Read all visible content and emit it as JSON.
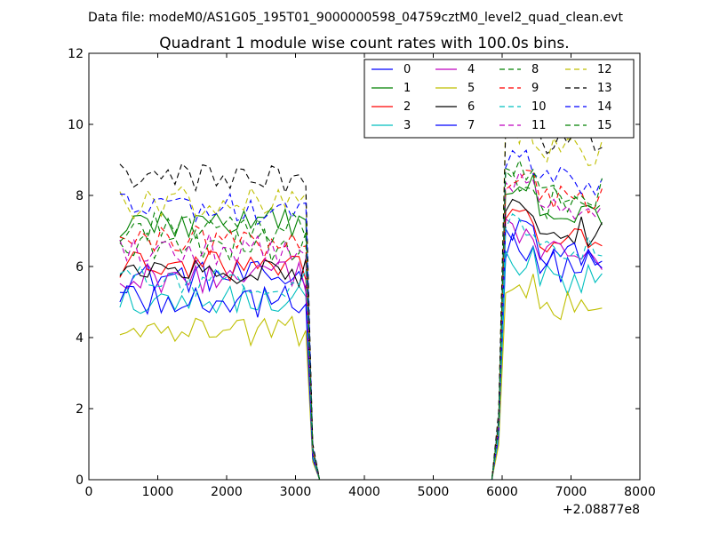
{
  "chart_data": {
    "type": "line",
    "suptitle": "Data file: modeM0/AS1G05_195T01_9000000598_04759cztM0_level2_quad_clean.evt",
    "title": "Quadrant 1 module wise count rates with 100.0s bins.",
    "xlabel": "",
    "ylabel": "",
    "x_offset_label": "+2.08877e8",
    "xlim": [
      0,
      8000
    ],
    "ylim": [
      0,
      12
    ],
    "xticks": [
      "0",
      "1000",
      "2000",
      "3000",
      "4000",
      "5000",
      "6000",
      "7000",
      "8000"
    ],
    "yticks": [
      "0",
      "2",
      "4",
      "6",
      "8",
      "10",
      "12"
    ],
    "x": [
      450,
      550,
      650,
      750,
      850,
      950,
      1050,
      1150,
      1250,
      1350,
      1450,
      1550,
      1650,
      1750,
      1850,
      1950,
      2050,
      2150,
      2250,
      2350,
      2450,
      2550,
      2650,
      2750,
      2850,
      2950,
      3050,
      3150,
      3250,
      3350,
      3450,
      5850,
      5950,
      6050,
      6150,
      6250,
      6350,
      6450,
      6550,
      6650,
      6750,
      6850,
      6950,
      7050,
      7150,
      7250,
      7350,
      7450
    ],
    "legend_location": "top-right",
    "series": [
      {
        "name": "0",
        "color": "#0000ff",
        "dash": "solid",
        "level": 5.7,
        "late": 6.0
      },
      {
        "name": "1",
        "color": "#008000",
        "dash": "solid",
        "level": 7.2,
        "late": 7.6
      },
      {
        "name": "2",
        "color": "#ff0000",
        "dash": "solid",
        "level": 6.0,
        "late": 6.7
      },
      {
        "name": "3",
        "color": "#00bfbf",
        "dash": "solid",
        "level": 5.1,
        "late": 5.6
      },
      {
        "name": "4",
        "color": "#bf00bf",
        "dash": "solid",
        "level": 5.7,
        "late": 6.3
      },
      {
        "name": "5",
        "color": "#bfbf00",
        "dash": "solid",
        "level": 4.2,
        "late": 4.9
      },
      {
        "name": "6",
        "color": "#000000",
        "dash": "solid",
        "level": 5.8,
        "late": 7.0
      },
      {
        "name": "7",
        "color": "#0000ff",
        "dash": "solid",
        "level": 5.0,
        "late": 6.3
      },
      {
        "name": "8",
        "color": "#008000",
        "dash": "dashed",
        "level": 6.6,
        "late": 7.8
      },
      {
        "name": "9",
        "color": "#ff0000",
        "dash": "dashed",
        "level": 6.7,
        "late": 7.9
      },
      {
        "name": "10",
        "color": "#00bfbf",
        "dash": "dashed",
        "level": 5.6,
        "late": 6.6
      },
      {
        "name": "11",
        "color": "#bf00bf",
        "dash": "dashed",
        "level": 6.5,
        "late": 7.7
      },
      {
        "name": "12",
        "color": "#bfbf00",
        "dash": "dashed",
        "level": 7.8,
        "late": 9.2
      },
      {
        "name": "13",
        "color": "#000000",
        "dash": "dashed",
        "level": 8.5,
        "late": 9.6
      },
      {
        "name": "14",
        "color": "#0000ff",
        "dash": "dashed",
        "level": 7.6,
        "late": 8.4
      },
      {
        "name": "15",
        "color": "#008000",
        "dash": "dashed",
        "level": 7.1,
        "late": 8.1
      }
    ]
  }
}
